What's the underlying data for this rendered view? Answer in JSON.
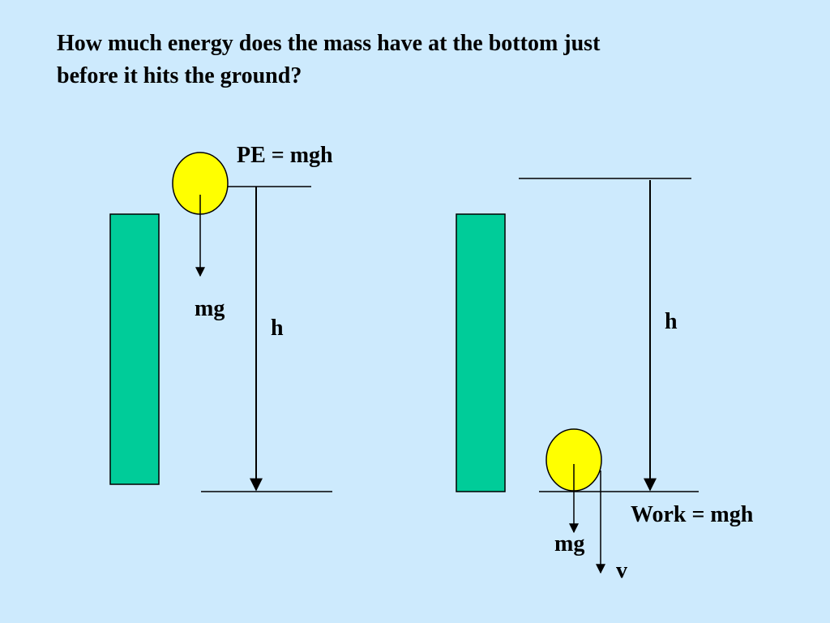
{
  "question": {
    "line1": "How much energy does the mass have at the bottom just",
    "line2": "before it hits the ground?"
  },
  "left_scene": {
    "pe_label": "PE = mgh",
    "force_label": "mg",
    "height_label": "h"
  },
  "right_scene": {
    "height_label": "h",
    "work_label": "Work = mgh",
    "force_label": "mg",
    "velocity_label": "v"
  },
  "colors": {
    "background": "#cdeafd",
    "tower": "#00cc99",
    "mass": "#ffff00",
    "line": "#000000"
  }
}
